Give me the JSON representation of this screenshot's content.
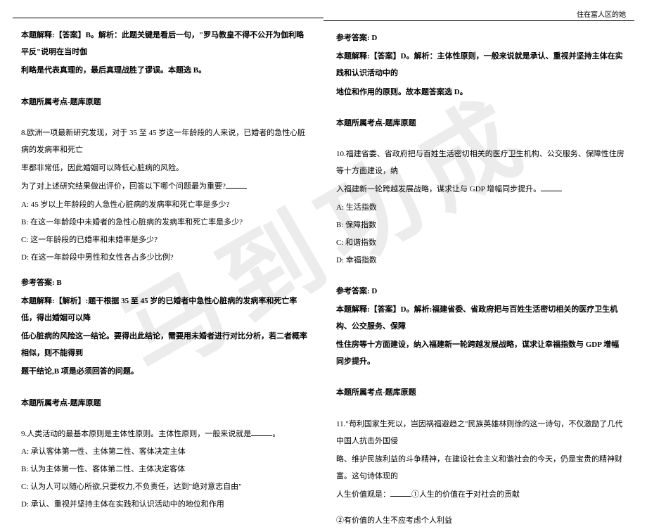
{
  "header": {
    "right_text": "住在富人区的她"
  },
  "watermark": "马到功成",
  "left": {
    "block1": {
      "l1": "本题解释:【答案】B。解析：此题关键是看后一句，\"罗马教皇不得不公开为伽利略平反\"说明在当时伽",
      "l2": "利略是代表真理的，最后真理战胜了谬误。本题选 B。"
    },
    "kaodian1": "本题所属考点-题库原题",
    "q8": {
      "stem1": "8.欧洲一项最新研究发现，对于 35 至 45 岁这一年龄段的人来说，已婚者的急性心脏病的发病率和死亡",
      "stem2": "率都非常低，因此婚姻可以降低心脏病的风险。",
      "stem3": "为了对上述研究结果做出评价，回答以下哪个问题最为重要?",
      "A": "A: 45 岁以上年龄段的人急性心脏病的发病率和死亡率是多少?",
      "B": "B: 在这一年龄段中未婚者的急性心脏病的发病率和死亡率是多少?",
      "C": "C: 这一年龄段的已婚率和未婚率是多少?",
      "D": "D: 在这一年龄段中男性和女性各占多少比例?",
      "ans": "参考答案: B",
      "exp1": "本题解释:【解析】:题干根据 35 至 45 岁的已婚者中急性心脏病的发病率和死亡率低，得出婚姻可以降",
      "exp2": "低心脏病的风险这一结论。要得出此结论，需要用未婚者进行对比分析，若二者概率相似，则不能得到",
      "exp3": "题干结论,B 项是必须回答的问题。"
    },
    "kaodian2": "本题所属考点-题库原题",
    "q9": {
      "stem": "9.人类活动的最基本原则是主体性原则。主体性原则，一般来说就是",
      "A": "A: 承认客体第一性、主体第二性、客体决定主体",
      "B": "B: 认为主体第一性、客体第二性、主体决定客体",
      "C": "C: 认为人可以随心所欲,只要权力,不负责任，达到\"绝对意志自由\"",
      "D": "D: 承认、重视并坚持主体在实践和认识活动中的地位和作用"
    }
  },
  "right": {
    "ans9": "参考答案: D",
    "exp9_1": "本题解释:【答案】D。解析：主体性原则，一般来说就是承认、重视并坚持主体在实践和认识活动中的",
    "exp9_2": "地位和作用的原则。故本题答案选 D。",
    "kaodian3": "本题所属考点-题库原题",
    "q10": {
      "stem1": "10.福建省委、省政府把与百姓生活密切相关的医疗卫生机构、公交服务、保障性住房等十方面建设，纳",
      "stem2": "入福建新一轮跨越发展战略，谋求让与 GDP 增幅同步提升。",
      "A": "A: 生活指数",
      "B": "B: 保障指数",
      "C": "C: 和谐指数",
      "D": "D: 幸福指数",
      "ans": "参考答案: D",
      "exp1": "本题解释:【答案】D。解析:福建省委、省政府把与百姓生活密切相关的医疗卫生机构、公交服务、保障",
      "exp2": "性住房等十方面建设，纳入福建新一轮跨越发展战略，谋求让幸福指数与 GDP 增幅同步提升。"
    },
    "kaodian4": "本题所属考点-题库原题",
    "q11": {
      "stem1": "11.\"苟利国家生死以，岂因祸福避趋之\"民族英雄林则徐的这一诗句，不仅激励了几代中国人抗击外国侵",
      "stem2": "略、维护民族利益的斗争精神，在建设社会主义和谐社会的今天，仍是宝贵的精神财富。这句诗体现的",
      "stem3_pre": "人生价值观是：",
      "stem3_post": "①人生的价值在于对社会的贡献",
      "opt2": "②有价值的人生不应考虑个人利益"
    }
  }
}
